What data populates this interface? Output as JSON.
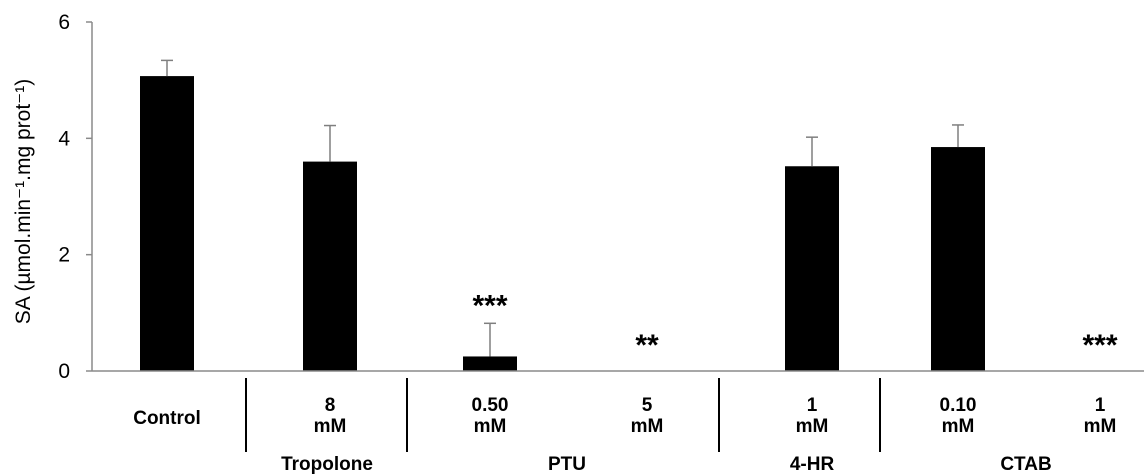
{
  "chart_data": {
    "type": "bar",
    "title": "",
    "xlabel": "",
    "ylabel": "SA (µmol.min⁻¹.mg prot⁻¹)",
    "ylim": [
      0,
      6
    ],
    "yticks": [
      0,
      2,
      4,
      6
    ],
    "grid": false,
    "categories": [
      {
        "line1": "Control",
        "line2": "",
        "group": ""
      },
      {
        "line1": "8",
        "line2": "mM",
        "group": "Tropolone"
      },
      {
        "line1": "0.50",
        "line2": "mM",
        "group": "PTU"
      },
      {
        "line1": "5",
        "line2": "mM",
        "group": "PTU"
      },
      {
        "line1": "1",
        "line2": "mM",
        "group": "4-HR"
      },
      {
        "line1": "0.10",
        "line2": "mM",
        "group": "CTAB"
      },
      {
        "line1": "1",
        "line2": "mM",
        "group": "CTAB"
      }
    ],
    "values": [
      5.07,
      3.6,
      0.25,
      0,
      3.52,
      3.85,
      0
    ],
    "errors": [
      0.27,
      0.62,
      0.57,
      0,
      0.5,
      0.38,
      0
    ],
    "significance": [
      "",
      "",
      "***",
      "**",
      "",
      "",
      "***"
    ],
    "groups": [
      {
        "label": "Tropolone",
        "members": [
          1
        ]
      },
      {
        "label": "PTU",
        "members": [
          2,
          3
        ]
      },
      {
        "label": "4-HR",
        "members": [
          4
        ]
      },
      {
        "label": "CTAB",
        "members": [
          5,
          6
        ]
      }
    ],
    "colors": {
      "bar": "#000000",
      "error_bar": "#7f7f7f",
      "axis": "#8a8a8a"
    }
  }
}
